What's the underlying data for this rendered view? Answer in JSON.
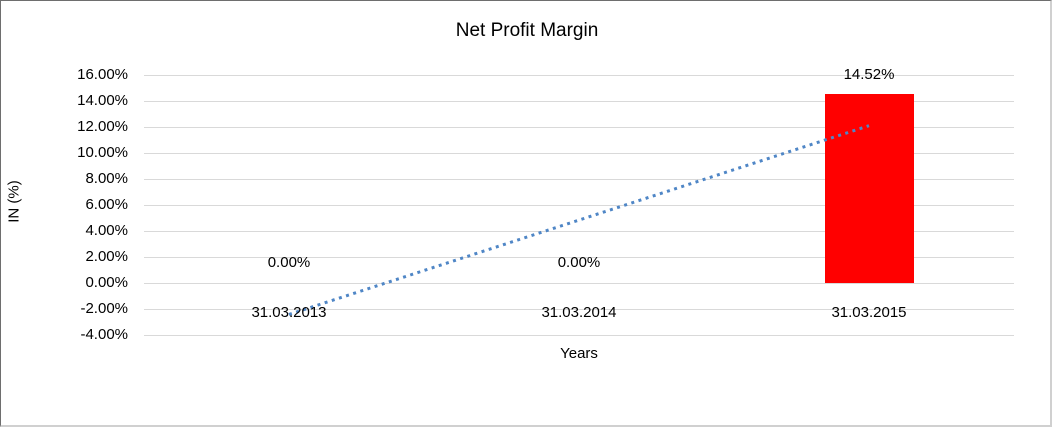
{
  "chart_data": {
    "type": "bar",
    "title": "Net Profit Margin",
    "xlabel": "Years",
    "ylabel": "IN (%)",
    "categories": [
      "31.03.2013",
      "31.03.2014",
      "31.03.2015"
    ],
    "series": [
      {
        "name": "Net Profit Margin",
        "color": "#ff0000",
        "values": [
          0,
          0,
          14.52
        ]
      }
    ],
    "value_labels": [
      "0.00%",
      "0.00%",
      "14.52%"
    ],
    "ylim": [
      -4,
      16
    ],
    "ytick_step": 2,
    "ytick_labels": [
      "16.00%",
      "14.00%",
      "12.00%",
      "10.00%",
      "8.00%",
      "6.00%",
      "4.00%",
      "2.00%",
      "0.00%",
      "-2.00%",
      "-4.00%"
    ],
    "grid": true,
    "gridline_color": "#d9d9d9",
    "legend": "none",
    "trendline": {
      "type": "linear",
      "style": "dotted",
      "color": "#4f86c6",
      "start_value": -2.42,
      "end_value": 12.1
    },
    "text_color": "#000000",
    "background_color": "#ffffff"
  }
}
